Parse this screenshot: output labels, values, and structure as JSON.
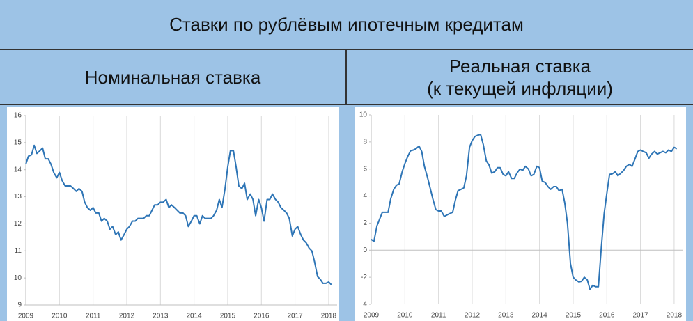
{
  "title": "Ставки по рублёвым ипотечным кредитам",
  "chart_data": [
    {
      "type": "line",
      "title": "Номинальная ставка",
      "x": [
        2009,
        2009.08,
        2009.17,
        2009.25,
        2009.33,
        2009.42,
        2009.5,
        2009.58,
        2009.67,
        2009.75,
        2009.83,
        2009.92,
        2010,
        2010.08,
        2010.17,
        2010.25,
        2010.33,
        2010.42,
        2010.5,
        2010.58,
        2010.67,
        2010.75,
        2010.83,
        2010.92,
        2011,
        2011.08,
        2011.17,
        2011.25,
        2011.33,
        2011.42,
        2011.5,
        2011.58,
        2011.67,
        2011.75,
        2011.83,
        2011.92,
        2012,
        2012.08,
        2012.17,
        2012.25,
        2012.33,
        2012.42,
        2012.5,
        2012.58,
        2012.67,
        2012.75,
        2012.83,
        2012.92,
        2013,
        2013.08,
        2013.17,
        2013.25,
        2013.33,
        2013.42,
        2013.5,
        2013.58,
        2013.67,
        2013.75,
        2013.83,
        2013.92,
        2014,
        2014.08,
        2014.17,
        2014.25,
        2014.33,
        2014.42,
        2014.5,
        2014.58,
        2014.67,
        2014.75,
        2014.83,
        2014.92,
        2015,
        2015.08,
        2015.17,
        2015.25,
        2015.33,
        2015.42,
        2015.5,
        2015.58,
        2015.67,
        2015.75,
        2015.83,
        2015.92,
        2016,
        2016.08,
        2016.17,
        2016.25,
        2016.33,
        2016.42,
        2016.5,
        2016.58,
        2016.67,
        2016.75,
        2016.83,
        2016.92,
        2017,
        2017.08,
        2017.17,
        2017.25,
        2017.33,
        2017.42,
        2017.5,
        2017.58,
        2017.67,
        2017.75,
        2017.83,
        2017.92,
        2018,
        2018.08
      ],
      "series": [
        {
          "color": "#2e75b6",
          "values": [
            14.2,
            14.5,
            14.55,
            14.9,
            14.6,
            14.7,
            14.8,
            14.4,
            14.4,
            14.2,
            13.9,
            13.7,
            13.9,
            13.6,
            13.4,
            13.4,
            13.4,
            13.3,
            13.2,
            13.3,
            13.2,
            12.8,
            12.6,
            12.5,
            12.6,
            12.4,
            12.4,
            12.1,
            12.2,
            12.1,
            11.8,
            11.9,
            11.6,
            11.7,
            11.4,
            11.6,
            11.8,
            11.9,
            12.1,
            12.1,
            12.2,
            12.2,
            12.2,
            12.3,
            12.3,
            12.5,
            12.7,
            12.7,
            12.8,
            12.8,
            12.9,
            12.6,
            12.7,
            12.6,
            12.5,
            12.4,
            12.4,
            12.3,
            11.9,
            12.1,
            12.3,
            12.3,
            12.0,
            12.3,
            12.2,
            12.2,
            12.2,
            12.3,
            12.5,
            12.9,
            12.6,
            13.3,
            14.1,
            14.7,
            14.7,
            14.1,
            13.4,
            13.3,
            13.5,
            12.9,
            13.1,
            12.9,
            12.3,
            12.9,
            12.6,
            12.1,
            12.9,
            12.9,
            13.1,
            12.9,
            12.8,
            12.6,
            12.5,
            12.4,
            12.2,
            11.55,
            11.8,
            11.9,
            11.6,
            11.4,
            11.3,
            11.1,
            11.0,
            10.6,
            10.05,
            9.95,
            9.8,
            9.8,
            9.85,
            9.75
          ]
        }
      ],
      "xlim": [
        2009,
        2018.25
      ],
      "xticks": [
        2009,
        2010,
        2011,
        2012,
        2013,
        2014,
        2015,
        2016,
        2017,
        2018
      ],
      "ylim": [
        9,
        16
      ],
      "yticks": [
        9,
        10,
        11,
        12,
        13,
        14,
        15,
        16
      ],
      "grid": "x"
    },
    {
      "type": "line",
      "title": "Реальная ставка\n(к текущей инфляции)",
      "x": [
        2009,
        2009.08,
        2009.17,
        2009.25,
        2009.33,
        2009.42,
        2009.5,
        2009.58,
        2009.67,
        2009.75,
        2009.83,
        2009.92,
        2010,
        2010.08,
        2010.17,
        2010.25,
        2010.33,
        2010.42,
        2010.5,
        2010.58,
        2010.67,
        2010.75,
        2010.83,
        2010.92,
        2011,
        2011.08,
        2011.17,
        2011.25,
        2011.33,
        2011.42,
        2011.5,
        2011.58,
        2011.67,
        2011.75,
        2011.83,
        2011.92,
        2012,
        2012.08,
        2012.17,
        2012.25,
        2012.33,
        2012.42,
        2012.5,
        2012.58,
        2012.67,
        2012.75,
        2012.83,
        2012.92,
        2013,
        2013.08,
        2013.17,
        2013.25,
        2013.33,
        2013.42,
        2013.5,
        2013.58,
        2013.67,
        2013.75,
        2013.83,
        2013.92,
        2014,
        2014.08,
        2014.17,
        2014.25,
        2014.33,
        2014.42,
        2014.5,
        2014.58,
        2014.67,
        2014.75,
        2014.83,
        2014.92,
        2015,
        2015.08,
        2015.17,
        2015.25,
        2015.33,
        2015.42,
        2015.5,
        2015.58,
        2015.67,
        2015.75,
        2015.83,
        2015.92,
        2016,
        2016.08,
        2016.17,
        2016.25,
        2016.33,
        2016.42,
        2016.5,
        2016.58,
        2016.67,
        2016.75,
        2016.83,
        2016.92,
        2017,
        2017.08,
        2017.17,
        2017.25,
        2017.33,
        2017.42,
        2017.5,
        2017.58,
        2017.67,
        2017.75,
        2017.83,
        2017.92,
        2018,
        2018.08
      ],
      "series": [
        {
          "color": "#2e75b6",
          "values": [
            0.8,
            0.65,
            1.8,
            2.3,
            2.8,
            2.8,
            2.8,
            3.8,
            4.5,
            4.8,
            4.9,
            5.8,
            6.4,
            6.9,
            7.35,
            7.4,
            7.5,
            7.7,
            7.3,
            6.2,
            5.4,
            4.6,
            3.8,
            3.0,
            2.9,
            2.9,
            2.5,
            2.6,
            2.7,
            2.8,
            3.7,
            4.4,
            4.5,
            4.6,
            5.5,
            7.6,
            8.1,
            8.4,
            8.5,
            8.55,
            7.8,
            6.6,
            6.3,
            5.7,
            5.8,
            6.1,
            6.1,
            5.6,
            5.5,
            5.8,
            5.3,
            5.3,
            5.7,
            6.0,
            5.9,
            6.2,
            6.0,
            5.5,
            5.6,
            6.2,
            6.1,
            5.1,
            5.0,
            4.7,
            4.5,
            4.7,
            4.7,
            4.4,
            4.5,
            3.5,
            2.0,
            -1.0,
            -2.0,
            -2.2,
            -2.35,
            -2.3,
            -2.0,
            -2.2,
            -2.9,
            -2.6,
            -2.7,
            -2.7,
            0.0,
            2.7,
            4.2,
            5.6,
            5.65,
            5.8,
            5.5,
            5.7,
            5.9,
            6.2,
            6.35,
            6.2,
            6.7,
            7.3,
            7.4,
            7.3,
            7.2,
            6.8,
            7.1,
            7.3,
            7.1,
            7.2,
            7.3,
            7.2,
            7.4,
            7.3,
            7.6,
            7.5
          ]
        }
      ],
      "xlim": [
        2009,
        2018.25
      ],
      "xticks": [
        2009,
        2010,
        2011,
        2012,
        2013,
        2014,
        2015,
        2016,
        2017,
        2018
      ],
      "ylim": [
        -4,
        10
      ],
      "yticks": [
        -4,
        -2,
        0,
        2,
        4,
        6,
        8,
        10
      ],
      "grid": "x"
    }
  ]
}
